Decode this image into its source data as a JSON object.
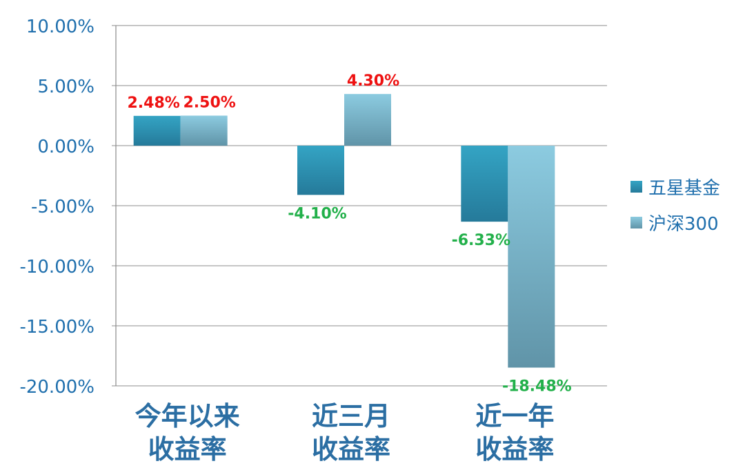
{
  "chart_data": {
    "type": "bar",
    "categories": [
      [
        "今年以来",
        "收益率"
      ],
      [
        "近三月",
        "收益率"
      ],
      [
        "近一年",
        "收益率"
      ]
    ],
    "series": [
      {
        "name": "五星基金",
        "values": [
          2.48,
          -4.1,
          -6.33
        ],
        "color_top": "#34a4c4",
        "color_bottom": "#257a9a"
      },
      {
        "name": "沪深300",
        "values": [
          2.5,
          4.3,
          -18.48
        ],
        "color_top": "#8ccbe0",
        "color_bottom": "#6094a8"
      }
    ],
    "data_labels": [
      [
        "2.48%",
        "-4.10%",
        "-6.33%"
      ],
      [
        "2.50%",
        "4.30%",
        "-18.48%"
      ]
    ],
    "ylim": [
      -20,
      10
    ],
    "y_ticks": [
      10,
      5,
      0,
      -5,
      -10,
      -15,
      -20
    ],
    "y_tick_labels": [
      "10.00%",
      "5.00%",
      "0.00%",
      "-5.00%",
      "-10.00%",
      "-15.00%",
      "-20.00%"
    ],
    "grid": true,
    "legend_position": "right",
    "positive_label_color": "#ee1111",
    "negative_label_color": "#22b04a"
  }
}
